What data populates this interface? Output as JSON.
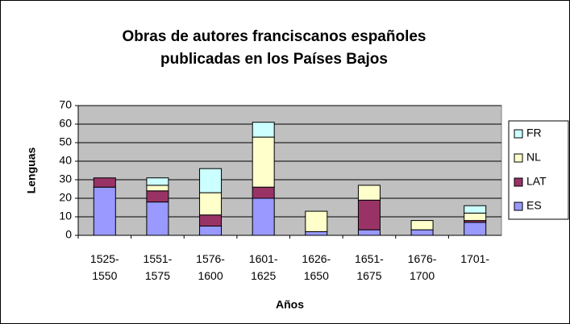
{
  "chart_data": {
    "type": "stacked_bar",
    "title": "Obras de autores franciscanos españoles publicadas en los Países Bajos",
    "xlabel": "Años",
    "ylabel": "Lenguas",
    "categories": [
      "1525-1550",
      "1551-1575",
      "1576-1600",
      "1601-1625",
      "1626-1650",
      "1651-1675",
      "1676-1700",
      "1701-"
    ],
    "series": [
      {
        "name": "ES",
        "color": "#9999ff",
        "values": [
          26,
          18,
          5,
          20,
          2,
          3,
          3,
          7
        ]
      },
      {
        "name": "LAT",
        "color": "#993366",
        "values": [
          5,
          6,
          6,
          6,
          0,
          16,
          0,
          1
        ]
      },
      {
        "name": "NL",
        "color": "#ffffcc",
        "values": [
          0,
          3,
          12,
          27,
          11,
          8,
          5,
          4
        ]
      },
      {
        "name": "FR",
        "color": "#ccffff",
        "values": [
          0,
          4,
          13,
          8,
          0,
          0,
          0,
          4
        ]
      }
    ],
    "ylim": [
      0,
      70
    ],
    "yticks": [
      0,
      10,
      20,
      30,
      40,
      50,
      60,
      70
    ],
    "grid": true,
    "legend": "right"
  }
}
